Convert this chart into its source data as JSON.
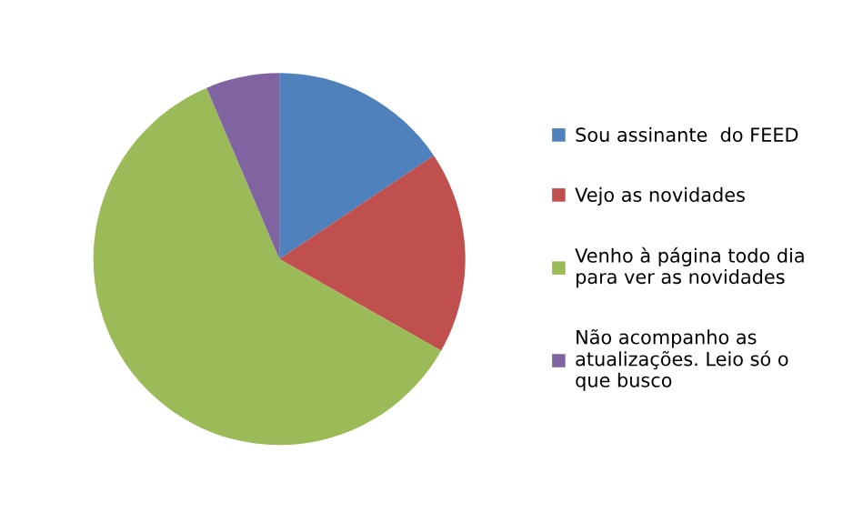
{
  "chart_data": {
    "type": "pie",
    "categories": [
      "Sou assinante  do FEED",
      "Vejo as novidades",
      "Venho à página todo dia\npara ver as novidades",
      "Não acompanho as\natualizações. Leio só o\nque busco"
    ],
    "values": [
      15.6,
      17.6,
      60.4,
      6.4
    ],
    "colors": [
      "#4f81bd",
      "#c0504d",
      "#9bbb59",
      "#8064a2"
    ],
    "legend": "right"
  }
}
